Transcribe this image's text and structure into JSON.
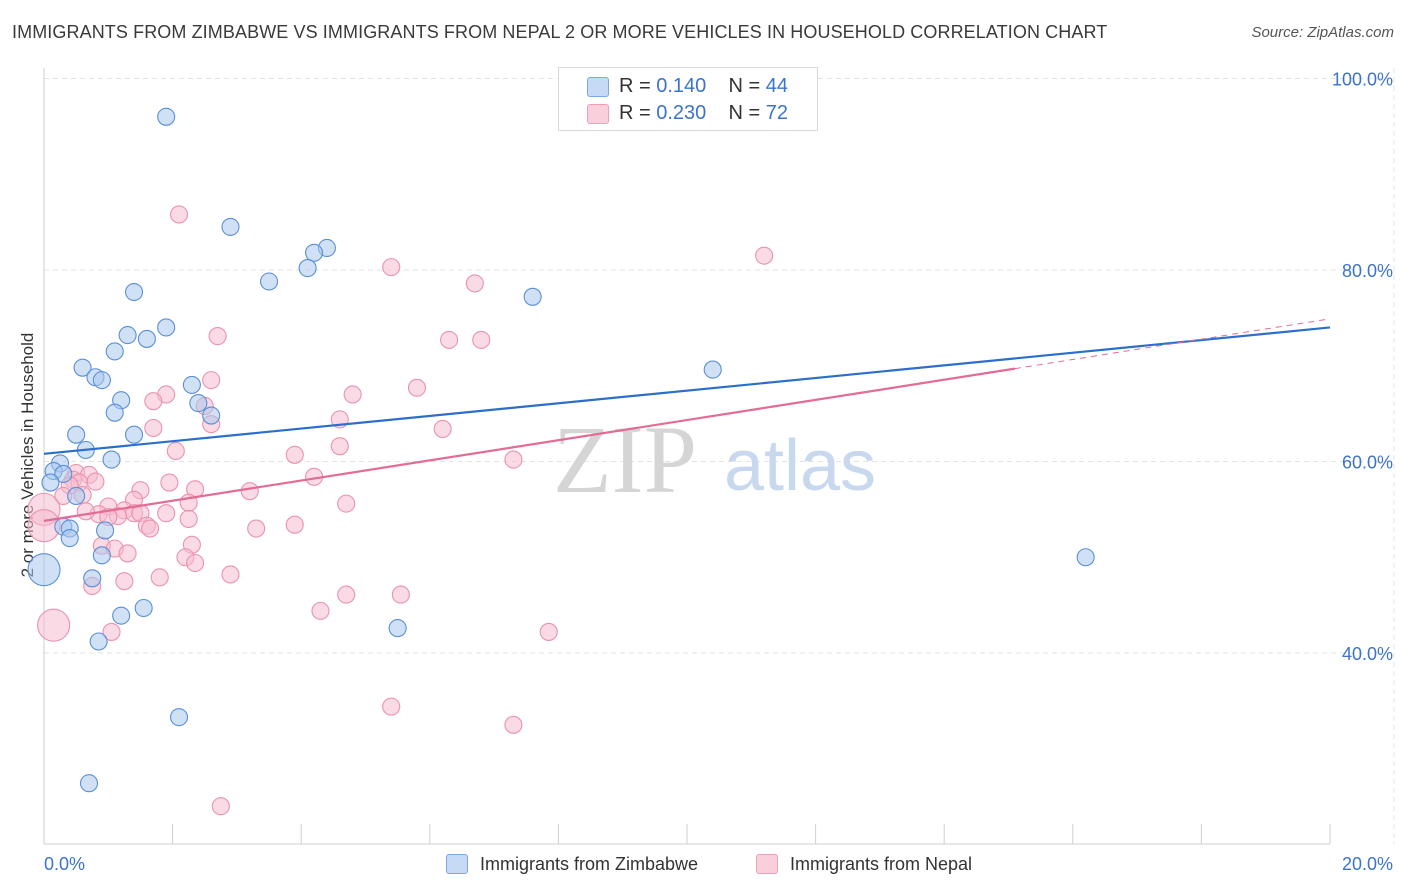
{
  "title": "IMMIGRANTS FROM ZIMBABWE VS IMMIGRANTS FROM NEPAL 2 OR MORE VEHICLES IN HOUSEHOLD CORRELATION CHART",
  "source": "Source: ZipAtlas.com",
  "watermark_zip": "ZIP",
  "watermark_atlas": "atlas",
  "colors": {
    "zimbabwe_fill": "#aac8ee",
    "zimbabwe_stroke": "#5b8fd6",
    "zimbabwe_line": "#2c6fcb",
    "nepal_fill": "#f6bccd",
    "nepal_stroke": "#e993af",
    "nepal_line": "#e36b96",
    "tick_label": "#3b74c9"
  },
  "legend": {
    "rows": [
      {
        "r_label": "R = ",
        "r_value": "0.140",
        "n_label": "N = ",
        "n_value": "44"
      },
      {
        "r_label": "R = ",
        "r_value": "0.230",
        "n_label": "N = ",
        "n_value": "72"
      }
    ]
  },
  "bottom_legend": [
    "Immigrants from Zimbabwe",
    "Immigrants from Nepal"
  ],
  "chart_data": {
    "type": "scatter",
    "title": "IMMIGRANTS FROM ZIMBABWE VS IMMIGRANTS FROM NEPAL 2 OR MORE VEHICLES IN HOUSEHOLD CORRELATION CHART",
    "xlabel": "",
    "ylabel": "2 or more Vehicles in Household",
    "xlim": [
      0,
      20
    ],
    "ylim": [
      20,
      100
    ],
    "x_tick_labels": [
      "0.0%",
      "20.0%"
    ],
    "y_ticks": [
      40,
      60,
      80,
      100
    ],
    "y_tick_labels": [
      "40.0%",
      "60.0%",
      "80.0%",
      "100.0%"
    ],
    "series": [
      {
        "name": "Immigrants from Zimbabwe",
        "r": 0.14,
        "n": 44,
        "trend": {
          "x": [
            0,
            20
          ],
          "y": [
            60.8,
            74.0
          ]
        },
        "points": [
          {
            "x": 1.9,
            "y": 96.0
          },
          {
            "x": 2.9,
            "y": 84.5
          },
          {
            "x": 4.4,
            "y": 82.3
          },
          {
            "x": 4.2,
            "y": 81.8
          },
          {
            "x": 4.1,
            "y": 80.2
          },
          {
            "x": 3.5,
            "y": 78.8
          },
          {
            "x": 1.4,
            "y": 77.7
          },
          {
            "x": 7.6,
            "y": 77.2
          },
          {
            "x": 1.9,
            "y": 74.0
          },
          {
            "x": 1.3,
            "y": 73.2
          },
          {
            "x": 1.6,
            "y": 72.8
          },
          {
            "x": 1.1,
            "y": 71.5
          },
          {
            "x": 0.6,
            "y": 69.8
          },
          {
            "x": 10.4,
            "y": 69.6
          },
          {
            "x": 0.8,
            "y": 68.8
          },
          {
            "x": 0.9,
            "y": 68.5
          },
          {
            "x": 2.3,
            "y": 68.0
          },
          {
            "x": 1.2,
            "y": 66.4
          },
          {
            "x": 2.4,
            "y": 66.1
          },
          {
            "x": 1.1,
            "y": 65.1
          },
          {
            "x": 2.6,
            "y": 64.8
          },
          {
            "x": 0.5,
            "y": 62.8
          },
          {
            "x": 1.4,
            "y": 62.8
          },
          {
            "x": 0.65,
            "y": 61.2
          },
          {
            "x": 1.05,
            "y": 60.2
          },
          {
            "x": 0.25,
            "y": 59.8
          },
          {
            "x": 0.15,
            "y": 59.0
          },
          {
            "x": 0.3,
            "y": 58.7
          },
          {
            "x": 0.1,
            "y": 57.8
          },
          {
            "x": 0.5,
            "y": 56.4
          },
          {
            "x": 0.3,
            "y": 53.2
          },
          {
            "x": 0.4,
            "y": 53.0
          },
          {
            "x": 0.4,
            "y": 52.0
          },
          {
            "x": 0.95,
            "y": 52.8
          },
          {
            "x": 0.9,
            "y": 50.2
          },
          {
            "x": 16.2,
            "y": 50.0
          },
          {
            "x": 0.0,
            "y": 48.7,
            "big": true
          },
          {
            "x": 0.75,
            "y": 47.8
          },
          {
            "x": 1.55,
            "y": 44.7
          },
          {
            "x": 1.2,
            "y": 43.9
          },
          {
            "x": 5.5,
            "y": 42.6
          },
          {
            "x": 0.85,
            "y": 41.2
          },
          {
            "x": 2.1,
            "y": 33.3
          },
          {
            "x": 0.7,
            "y": 26.4
          }
        ]
      },
      {
        "name": "Immigrants from Nepal",
        "r": 0.23,
        "n": 72,
        "trend": {
          "x": [
            0,
            15.1
          ],
          "y": [
            53.8,
            69.7
          ]
        },
        "trend_extension": {
          "x": [
            15.1,
            20
          ],
          "y": [
            69.7,
            74.9
          ]
        },
        "points": [
          {
            "x": 2.1,
            "y": 85.8
          },
          {
            "x": 11.2,
            "y": 81.5
          },
          {
            "x": 5.4,
            "y": 80.3
          },
          {
            "x": 6.7,
            "y": 78.6
          },
          {
            "x": 2.7,
            "y": 73.1
          },
          {
            "x": 6.3,
            "y": 72.7
          },
          {
            "x": 6.8,
            "y": 72.7
          },
          {
            "x": 2.6,
            "y": 68.5
          },
          {
            "x": 5.8,
            "y": 67.7
          },
          {
            "x": 1.9,
            "y": 67.0
          },
          {
            "x": 4.8,
            "y": 67.0
          },
          {
            "x": 1.7,
            "y": 66.3
          },
          {
            "x": 2.5,
            "y": 65.8
          },
          {
            "x": 4.6,
            "y": 64.4
          },
          {
            "x": 2.6,
            "y": 63.9
          },
          {
            "x": 1.7,
            "y": 63.5
          },
          {
            "x": 6.2,
            "y": 63.4
          },
          {
            "x": 4.6,
            "y": 61.6
          },
          {
            "x": 2.05,
            "y": 61.1
          },
          {
            "x": 3.9,
            "y": 60.7
          },
          {
            "x": 7.3,
            "y": 60.2
          },
          {
            "x": 0.5,
            "y": 58.8
          },
          {
            "x": 0.7,
            "y": 58.6
          },
          {
            "x": 4.2,
            "y": 58.4
          },
          {
            "x": 0.45,
            "y": 58.1
          },
          {
            "x": 0.55,
            "y": 57.8
          },
          {
            "x": 1.95,
            "y": 57.8
          },
          {
            "x": 0.8,
            "y": 57.9
          },
          {
            "x": 0.4,
            "y": 57.5
          },
          {
            "x": 2.35,
            "y": 57.1
          },
          {
            "x": 1.5,
            "y": 57.0
          },
          {
            "x": 3.2,
            "y": 56.9
          },
          {
            "x": 0.6,
            "y": 56.5
          },
          {
            "x": 0.3,
            "y": 56.4
          },
          {
            "x": 1.4,
            "y": 56.0
          },
          {
            "x": 2.25,
            "y": 55.7
          },
          {
            "x": 4.7,
            "y": 55.6
          },
          {
            "x": 0.0,
            "y": 55.0,
            "big": true
          },
          {
            "x": 1.0,
            "y": 55.3
          },
          {
            "x": 1.25,
            "y": 54.9
          },
          {
            "x": 1.4,
            "y": 54.6
          },
          {
            "x": 1.5,
            "y": 54.6
          },
          {
            "x": 0.85,
            "y": 54.5
          },
          {
            "x": 1.9,
            "y": 54.6
          },
          {
            "x": 1.15,
            "y": 54.3
          },
          {
            "x": 0.65,
            "y": 54.8
          },
          {
            "x": 1.0,
            "y": 54.2
          },
          {
            "x": 2.25,
            "y": 54.0
          },
          {
            "x": 1.6,
            "y": 53.3
          },
          {
            "x": 1.65,
            "y": 53.0
          },
          {
            "x": 3.9,
            "y": 53.4
          },
          {
            "x": 3.3,
            "y": 53.0
          },
          {
            "x": 0.0,
            "y": 53.3,
            "big": true
          },
          {
            "x": 2.3,
            "y": 51.3
          },
          {
            "x": 0.9,
            "y": 51.2
          },
          {
            "x": 1.1,
            "y": 50.9
          },
          {
            "x": 2.2,
            "y": 50.0
          },
          {
            "x": 2.35,
            "y": 49.4
          },
          {
            "x": 1.3,
            "y": 50.4
          },
          {
            "x": 2.9,
            "y": 48.2
          },
          {
            "x": 1.8,
            "y": 47.9
          },
          {
            "x": 1.25,
            "y": 47.5
          },
          {
            "x": 0.75,
            "y": 47.0
          },
          {
            "x": 4.7,
            "y": 46.1
          },
          {
            "x": 5.55,
            "y": 46.1
          },
          {
            "x": 4.3,
            "y": 44.4
          },
          {
            "x": 0.15,
            "y": 42.9,
            "big": true
          },
          {
            "x": 1.05,
            "y": 42.2
          },
          {
            "x": 7.85,
            "y": 42.2
          },
          {
            "x": 5.4,
            "y": 34.4
          },
          {
            "x": 7.3,
            "y": 32.5
          },
          {
            "x": 2.75,
            "y": 24.0
          }
        ]
      }
    ]
  }
}
